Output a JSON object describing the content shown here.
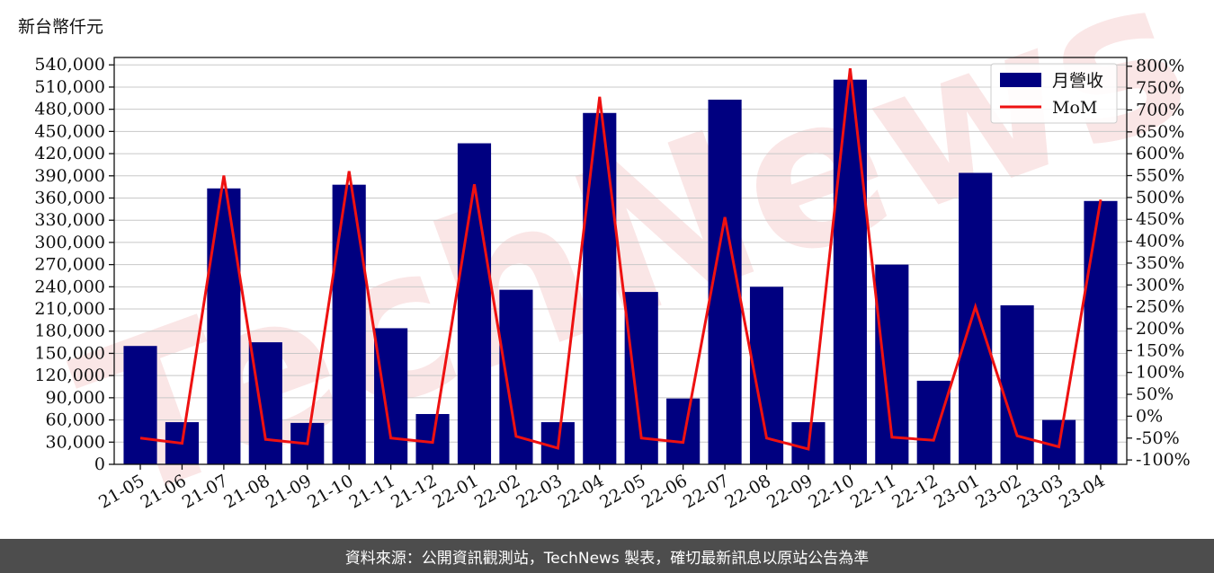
{
  "unit_label": "新台幣仟元",
  "footer": "資料來源：公開資訊觀測站，TechNews 製表，確切最新訊息以原站公告為準",
  "watermark": "TechNews",
  "chart_data": {
    "type": "bar",
    "categories": [
      "21-05",
      "21-06",
      "21-07",
      "21-08",
      "21-09",
      "21-10",
      "21-11",
      "21-12",
      "22-01",
      "22-02",
      "22-03",
      "22-04",
      "22-05",
      "22-06",
      "22-07",
      "22-08",
      "22-09",
      "22-10",
      "22-11",
      "22-12",
      "23-01",
      "23-02",
      "23-03",
      "23-04"
    ],
    "series": [
      {
        "name": "月營收",
        "type": "bar",
        "axis": "left",
        "color": "#000080",
        "values": [
          160000,
          57000,
          373000,
          165000,
          56000,
          378000,
          184000,
          68000,
          434000,
          236000,
          57000,
          475000,
          233000,
          89000,
          493000,
          240000,
          57000,
          520000,
          270000,
          113000,
          394000,
          215000,
          60000,
          356000
        ]
      },
      {
        "name": "MoM",
        "type": "line",
        "axis": "right",
        "color": "#ee1111",
        "values": [
          -50,
          -62,
          550,
          -53,
          -63,
          560,
          -50,
          -60,
          530,
          -46,
          -73,
          730,
          -50,
          -60,
          455,
          -50,
          -75,
          795,
          -48,
          -55,
          250,
          -45,
          -70,
          495
        ]
      }
    ],
    "y_left": {
      "min": 0,
      "max": 550000,
      "ticks": [
        0,
        30000,
        60000,
        90000,
        120000,
        150000,
        180000,
        210000,
        240000,
        270000,
        300000,
        330000,
        360000,
        390000,
        420000,
        450000,
        480000,
        510000,
        540000
      ],
      "tick_labels": [
        "0",
        "30,000",
        "60,000",
        "90,000",
        "120,000",
        "150,000",
        "180,000",
        "210,000",
        "240,000",
        "270,000",
        "300,000",
        "330,000",
        "360,000",
        "390,000",
        "420,000",
        "450,000",
        "480,000",
        "510,000",
        "540,000"
      ]
    },
    "y_right": {
      "min": -110,
      "max": 820,
      "ticks": [
        -100,
        -50,
        0,
        50,
        100,
        150,
        200,
        250,
        300,
        350,
        400,
        450,
        500,
        550,
        600,
        650,
        700,
        750,
        800
      ],
      "tick_labels": [
        "-100%",
        "-50%",
        "0%",
        "50%",
        "100%",
        "150%",
        "200%",
        "250%",
        "300%",
        "350%",
        "400%",
        "450%",
        "500%",
        "550%",
        "600%",
        "650%",
        "700%",
        "750%",
        "800%"
      ]
    },
    "grid": true,
    "legend": "top-right"
  }
}
